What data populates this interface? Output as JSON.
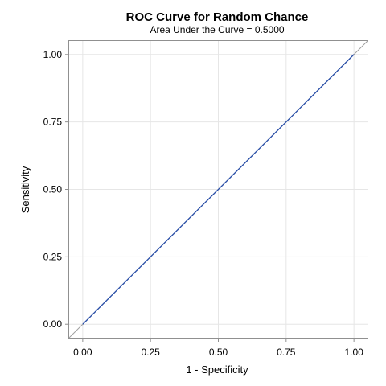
{
  "chart_data": {
    "type": "line",
    "title": "ROC Curve for Random Chance",
    "subtitle": "Area Under the Curve = 0.5000",
    "xlabel": "1 - Specificity",
    "ylabel": "Sensitivity",
    "xlim": [
      -0.05,
      1.05
    ],
    "ylim": [
      -0.05,
      1.05
    ],
    "xticks": [
      0,
      0.25,
      0.5,
      0.75,
      1
    ],
    "yticks": [
      0,
      0.25,
      0.5,
      0.75,
      1
    ],
    "xtick_labels": [
      "0.00",
      "0.25",
      "0.50",
      "0.75",
      "1.00"
    ],
    "ytick_labels": [
      "0.00",
      "0.25",
      "0.50",
      "0.75",
      "1.00"
    ],
    "grid": true,
    "series": [
      {
        "x": [
          0,
          1
        ],
        "y": [
          0,
          1
        ],
        "color": "#2a4fa8"
      }
    ],
    "reference_line": {
      "x": [
        -0.05,
        1.05
      ],
      "y": [
        -0.05,
        1.05
      ],
      "color": "#a0a0a0"
    }
  }
}
